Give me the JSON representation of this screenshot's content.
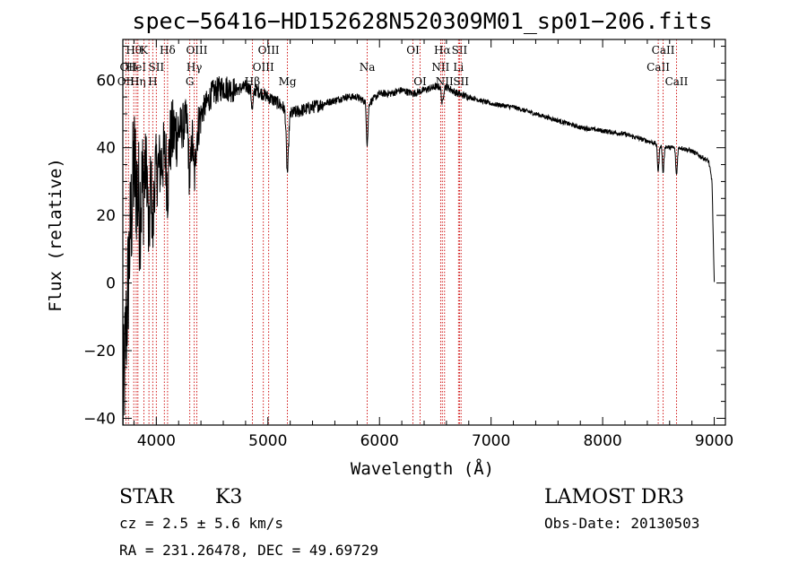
{
  "chart_data": {
    "type": "line",
    "title": "spec−56416−HD152628N520309M01_sp01−206.fits",
    "xlabel": "Wavelength (Å)",
    "ylabel": "Flux (relative)",
    "xlim": [
      3700,
      9100
    ],
    "ylim": [
      -42,
      72
    ],
    "x_ticks": [
      4000,
      5000,
      6000,
      7000,
      8000,
      9000
    ],
    "y_ticks": [
      -40,
      -20,
      0,
      20,
      40,
      60
    ],
    "y_tick_labels": [
      "−40",
      "−20",
      "0",
      "20",
      "40",
      "60"
    ],
    "continuum": [
      [
        3700,
        -38
      ],
      [
        3760,
        10
      ],
      [
        3800,
        35
      ],
      [
        3850,
        22
      ],
      [
        3900,
        34
      ],
      [
        3950,
        38
      ],
      [
        4000,
        33
      ],
      [
        4050,
        36
      ],
      [
        4100,
        40
      ],
      [
        4150,
        44
      ],
      [
        4200,
        45
      ],
      [
        4250,
        47
      ],
      [
        4300,
        49
      ],
      [
        4350,
        42
      ],
      [
        4400,
        50
      ],
      [
        4450,
        53
      ],
      [
        4500,
        56
      ],
      [
        4550,
        57
      ],
      [
        4600,
        58
      ],
      [
        4700,
        57
      ],
      [
        4800,
        58
      ],
      [
        4900,
        57
      ],
      [
        5000,
        55
      ],
      [
        5100,
        53
      ],
      [
        5200,
        50
      ],
      [
        5300,
        51
      ],
      [
        5400,
        52
      ],
      [
        5500,
        53
      ],
      [
        5600,
        54
      ],
      [
        5700,
        55
      ],
      [
        5800,
        55
      ],
      [
        5900,
        53
      ],
      [
        6000,
        56
      ],
      [
        6100,
        56
      ],
      [
        6200,
        57
      ],
      [
        6300,
        56
      ],
      [
        6400,
        57
      ],
      [
        6500,
        58
      ],
      [
        6600,
        58
      ],
      [
        6700,
        56
      ],
      [
        6800,
        55
      ],
      [
        6900,
        54
      ],
      [
        7000,
        53
      ],
      [
        7200,
        52
      ],
      [
        7400,
        50
      ],
      [
        7600,
        48
      ],
      [
        7800,
        46
      ],
      [
        8000,
        45
      ],
      [
        8200,
        44
      ],
      [
        8400,
        42
      ],
      [
        8500,
        41
      ],
      [
        8600,
        40
      ],
      [
        8700,
        40
      ],
      [
        8800,
        39
      ],
      [
        8900,
        37
      ],
      [
        8950,
        36
      ],
      [
        8980,
        30
      ],
      [
        9000,
        0
      ]
    ],
    "absorption_features": [
      {
        "x": 3934,
        "depth": 25,
        "width": 12
      },
      {
        "x": 3968,
        "depth": 22,
        "width": 12
      },
      {
        "x": 4101,
        "depth": 12,
        "width": 12
      },
      {
        "x": 4300,
        "depth": 18,
        "width": 15
      },
      {
        "x": 4340,
        "depth": 12,
        "width": 12
      },
      {
        "x": 4861,
        "depth": 6,
        "width": 12
      },
      {
        "x": 5175,
        "depth": 18,
        "width": 14
      },
      {
        "x": 5890,
        "depth": 12,
        "width": 10
      },
      {
        "x": 6563,
        "depth": 5,
        "width": 12
      },
      {
        "x": 8498,
        "depth": 8,
        "width": 10
      },
      {
        "x": 8542,
        "depth": 8,
        "width": 10
      },
      {
        "x": 8662,
        "depth": 8,
        "width": 10
      }
    ],
    "line_markers": [
      {
        "x": 3727,
        "label": "OII",
        "row": 2
      },
      {
        "x": 3750,
        "label": "OII",
        "row": 1
      },
      {
        "x": 3798,
        "label": "Hθ",
        "row": 0
      },
      {
        "x": 3820,
        "label": "HeI",
        "row": 1
      },
      {
        "x": 3835,
        "label": "Hη",
        "row": 2
      },
      {
        "x": 3889,
        "label": "K",
        "row": 0
      },
      {
        "x": 3934,
        "label": "",
        "row": 0
      },
      {
        "x": 3968,
        "label": "H",
        "row": 2
      },
      {
        "x": 4000,
        "label": "SII",
        "row": 1
      },
      {
        "x": 4101,
        "label": "Hδ",
        "row": 0
      },
      {
        "x": 4072,
        "label": "",
        "row": 0
      },
      {
        "x": 4300,
        "label": "G",
        "row": 2
      },
      {
        "x": 4340,
        "label": "Hγ",
        "row": 1
      },
      {
        "x": 4363,
        "label": "OIII",
        "row": 0
      },
      {
        "x": 4861,
        "label": "Hβ",
        "row": 2
      },
      {
        "x": 4959,
        "label": "OIII",
        "row": 1
      },
      {
        "x": 5007,
        "label": "OIII",
        "row": 0
      },
      {
        "x": 5175,
        "label": "Mg",
        "row": 2
      },
      {
        "x": 5890,
        "label": "Na",
        "row": 1
      },
      {
        "x": 6300,
        "label": "OI",
        "row": 0
      },
      {
        "x": 6364,
        "label": "OI",
        "row": 2
      },
      {
        "x": 6548,
        "label": "NII",
        "row": 1
      },
      {
        "x": 6563,
        "label": "Hα",
        "row": 0
      },
      {
        "x": 6583,
        "label": "NII",
        "row": 2
      },
      {
        "x": 6708,
        "label": "Li",
        "row": 1
      },
      {
        "x": 6717,
        "label": "SII",
        "row": 0
      },
      {
        "x": 6731,
        "label": "SII",
        "row": 2
      },
      {
        "x": 8498,
        "label": "CaII",
        "row": 1
      },
      {
        "x": 8542,
        "label": "CaII",
        "row": 0
      },
      {
        "x": 8662,
        "label": "CaII",
        "row": 2
      }
    ]
  },
  "info": {
    "object_class": "STAR",
    "subclass": "K3",
    "survey": "LAMOST DR3",
    "redshift": "cz = 2.5 ± 5.6 km/s",
    "obs_date": "Obs-Date: 20130503",
    "coords": "RA = 231.26478, DEC =  49.69729"
  },
  "colors": {
    "spectrum": "#000000",
    "marker": "#cc0000"
  }
}
